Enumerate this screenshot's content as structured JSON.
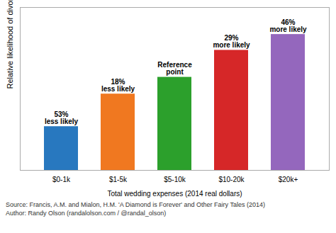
{
  "chart_data": {
    "type": "bar",
    "categories": [
      "$0-1k",
      "$1-5k",
      "$5-10k",
      "$10-20k",
      "$20k+"
    ],
    "values": [
      0.47,
      0.82,
      1.0,
      1.29,
      1.46
    ],
    "colors": [
      "#2878bf",
      "#f07820",
      "#2ca02c",
      "#d62728",
      "#9467bd"
    ],
    "annotations": [
      "53%\nless likely",
      "18%\nless likely",
      "Reference\npoint",
      "29%\nmore likely",
      "46%\nmore likely"
    ],
    "xlabel": "Total wedding expenses (2014 real dollars)",
    "ylabel": "Relative likelihood of divorce",
    "caption": "Source: Francis, A.M. and Mialon, H.M. 'A Diamond is Forever' and Other Fairy Tales (2014)\nAuthor: Randy Olson (randalolson.com / @randal_olson)",
    "ylim": [
      0,
      1.75
    ],
    "yticks": [],
    "grid": false,
    "tick_labels": "x"
  }
}
